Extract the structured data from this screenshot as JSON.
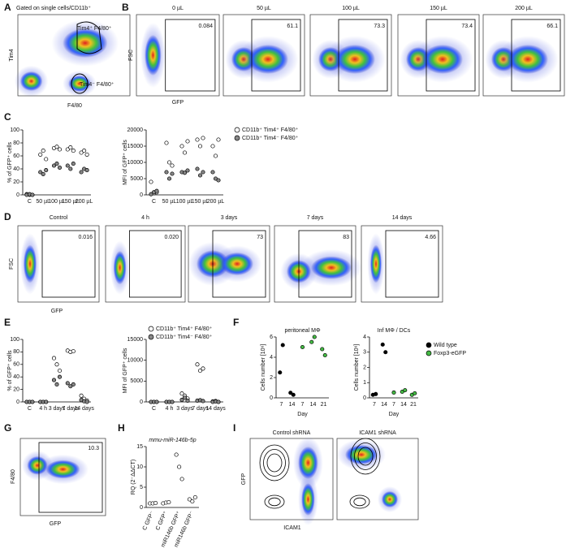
{
  "A": {
    "letter": "A",
    "title": "Gated on single cells/CD11b⁺",
    "gates": [
      "Tim4⁺ F4/80⁺",
      "Tim4⁻ F4/80⁺"
    ],
    "xlabel": "F4/80",
    "ylabel": "Tim4"
  },
  "B": {
    "letter": "B",
    "ylabel": "FSC",
    "xlabel": "GFP",
    "plots": [
      {
        "title": "0 µL",
        "gate": 0.084
      },
      {
        "title": "50 µL",
        "gate": 61.1
      },
      {
        "title": "100 µL",
        "gate": 73.3
      },
      {
        "title": "150 µL",
        "gate": 73.4
      },
      {
        "title": "200 µL",
        "gate": 66.1
      }
    ]
  },
  "C": {
    "letter": "C",
    "charts": [
      {
        "type": "dot",
        "ylabel": "% of GFP⁺ cells",
        "categories": [
          "C",
          "50 µL",
          "100 µL",
          "150 µL",
          "200 µL"
        ],
        "ylim": [
          0,
          100
        ],
        "yticks": [
          0,
          20,
          40,
          60,
          80,
          100
        ],
        "series": [
          {
            "name": "CD11b⁺ Tim4⁺ F4/80⁺",
            "color": "#ffffff",
            "values": [
              [
                1,
                0,
                0
              ],
              [
                62,
                68,
                55
              ],
              [
                72,
                74,
                70
              ],
              [
                70,
                73,
                68
              ],
              [
                65,
                68,
                62
              ]
            ]
          },
          {
            "name": "CD11b⁺ Tim4⁻ F4/80⁺",
            "color": "#888888",
            "values": [
              [
                0,
                1,
                0
              ],
              [
                35,
                32,
                38
              ],
              [
                45,
                48,
                42
              ],
              [
                45,
                40,
                48
              ],
              [
                35,
                40,
                38
              ]
            ]
          }
        ]
      },
      {
        "type": "dot",
        "ylabel": "MFI of GFP⁺ cells",
        "categories": [
          "C",
          "50 µL",
          "100 µL",
          "150 µL",
          "200 µL"
        ],
        "ylim": [
          0,
          20000
        ],
        "yticks": [
          0,
          5000,
          10000,
          15000,
          20000
        ],
        "series": [
          {
            "name": "CD11b⁺ Tim4⁺ F4/80⁺",
            "color": "#ffffff",
            "values": [
              [
                4000,
                500,
                800
              ],
              [
                16000,
                10000,
                9000
              ],
              [
                15000,
                13000,
                16500
              ],
              [
                17000,
                15000,
                17500
              ],
              [
                15000,
                12000,
                17000
              ]
            ]
          },
          {
            "name": "CD11b⁺ Tim4⁻ F4/80⁺",
            "color": "#888888",
            "values": [
              [
                200,
                800,
                1200
              ],
              [
                7000,
                5000,
                6500
              ],
              [
                7000,
                6800,
                7500
              ],
              [
                8000,
                6000,
                7000
              ],
              [
                7000,
                5000,
                4500
              ]
            ]
          }
        ]
      }
    ]
  },
  "D": {
    "letter": "D",
    "ylabel": "FSC",
    "xlabel": "GFP",
    "plots": [
      {
        "title": "Control",
        "gate": 0.016
      },
      {
        "title": "4 h",
        "gate": "0.020"
      },
      {
        "title": "3 days",
        "gate": 73
      },
      {
        "title": "7 days",
        "gate": 83
      },
      {
        "title": "14 days",
        "gate": 4.66
      }
    ]
  },
  "E": {
    "letter": "E",
    "charts": [
      {
        "type": "dot",
        "ylabel": "% of GFP⁺ cells",
        "categories": [
          "C",
          "4 h",
          "3 days",
          "7 days",
          "14 days"
        ],
        "ylim": [
          0,
          100
        ],
        "yticks": [
          0,
          20,
          40,
          60,
          80,
          100
        ],
        "series": [
          {
            "name": "CD11b⁺ Tim4⁺ F4/80⁺",
            "color": "#ffffff",
            "values": [
              [
                0,
                0,
                0
              ],
              [
                0,
                0,
                0
              ],
              [
                70,
                60,
                50
              ],
              [
                82,
                80,
                81
              ],
              [
                10,
                5,
                2
              ]
            ]
          },
          {
            "name": "CD11b⁺ Tim4⁻ F4/80⁺",
            "color": "#888888",
            "values": [
              [
                0,
                0,
                0
              ],
              [
                0,
                0,
                0
              ],
              [
                35,
                28,
                40
              ],
              [
                30,
                25,
                28
              ],
              [
                3,
                1,
                0
              ]
            ]
          }
        ]
      },
      {
        "type": "dot",
        "ylabel": "MFI of GFP⁺ cells",
        "categories": [
          "C",
          "4 h",
          "3 days",
          "7 days",
          "14 days"
        ],
        "ylim": [
          0,
          15000
        ],
        "yticks": [
          0,
          5000,
          10000,
          15000
        ],
        "series": [
          {
            "name": "CD11b⁺ Tim4⁺ F4/80⁺",
            "color": "#ffffff",
            "values": [
              [
                0,
                0,
                0
              ],
              [
                0,
                0,
                0
              ],
              [
                2000,
                1500,
                800
              ],
              [
                9000,
                7500,
                8000
              ],
              [
                100,
                200,
                0
              ]
            ]
          },
          {
            "name": "CD11b⁺ Tim4⁻ F4/80⁺",
            "color": "#888888",
            "values": [
              [
                0,
                0,
                0
              ],
              [
                0,
                0,
                0
              ],
              [
                500,
                1000,
                300
              ],
              [
                300,
                400,
                200
              ],
              [
                0,
                100,
                0
              ]
            ]
          }
        ]
      }
    ]
  },
  "F": {
    "letter": "F",
    "charts": [
      {
        "type": "dot",
        "title": "peritoneal MΦ",
        "ylabel": "Cells number [10⁶]",
        "xlabel": "Day",
        "categories": [
          7,
          14,
          7,
          14,
          21
        ],
        "ylim": [
          0,
          6
        ],
        "yticks": [
          0,
          2,
          4,
          6
        ],
        "series": [
          {
            "name": "Wild type",
            "color": "#000000",
            "values": [
              [
                2.5,
                5.2
              ],
              [
                0.5,
                0.3
              ],
              null,
              null,
              null
            ]
          },
          {
            "name": "Foxp3-eGFP",
            "color": "#44bb44",
            "values": [
              null,
              null,
              [
                5.0
              ],
              [
                5.5,
                6.0
              ],
              [
                4.8,
                4.2
              ]
            ]
          }
        ]
      },
      {
        "type": "dot",
        "title": "Inf MΦ / DCs",
        "ylabel": "Cells number [10⁶]",
        "xlabel": "Day",
        "categories": [
          7,
          14,
          7,
          14,
          21
        ],
        "ylim": [
          0,
          4
        ],
        "yticks": [
          0,
          1,
          2,
          3,
          4
        ],
        "series": [
          {
            "name": "Wild type",
            "color": "#000000",
            "values": [
              [
                0.2,
                0.25
              ],
              [
                3.5,
                3.0
              ],
              null,
              null,
              null
            ]
          },
          {
            "name": "Foxp3-eGFP",
            "color": "#44bb44",
            "values": [
              null,
              null,
              [
                0.35
              ],
              [
                0.4,
                0.5
              ],
              [
                0.2,
                0.3
              ]
            ]
          }
        ]
      }
    ]
  },
  "G": {
    "letter": "G",
    "ylabel": "F4/80",
    "xlabel": "GFP",
    "gate": 10.3
  },
  "H": {
    "letter": "H",
    "charts": [
      {
        "type": "dot",
        "title": "mmu-miR-146b-5p",
        "ylabel": "RQ (2⁻ΔΔCT)",
        "categories": [
          "C GFP⁻",
          "C GFP⁺",
          "miR146b GFP⁺",
          "miR146b GFP⁻"
        ],
        "ylim": [
          0,
          15
        ],
        "yticks": [
          0,
          5,
          10,
          15
        ],
        "series": [
          {
            "name": "RQ",
            "color": "#ffffff",
            "values": [
              [
                1,
                1,
                1.1
              ],
              [
                1,
                1.2,
                1.3
              ],
              [
                13,
                10,
                7
              ],
              [
                2,
                1.5,
                2.5
              ]
            ]
          }
        ]
      }
    ]
  },
  "I": {
    "letter": "I",
    "ylabel": "GFP",
    "xlabel": "ICAM1",
    "plots": [
      {
        "title": "Control shRNA"
      },
      {
        "title": "ICAM1 shRNA"
      }
    ]
  }
}
